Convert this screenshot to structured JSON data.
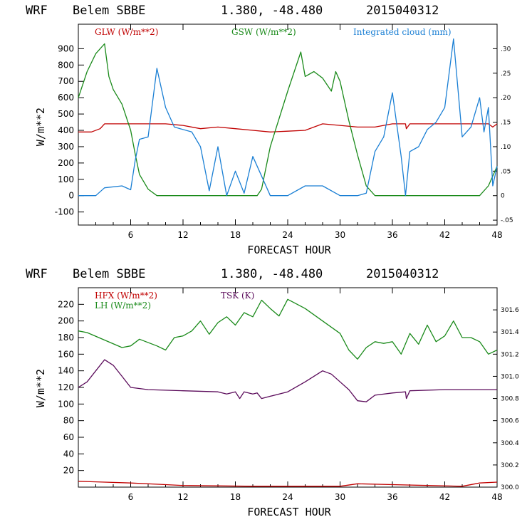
{
  "charts": [
    {
      "header": {
        "model": "WRF",
        "station": "Belem SBBE",
        "coords": "1.380, -48.480",
        "run": "2015040312"
      },
      "xlabel": "FORECAST HOUR",
      "ylabel": "W/m**2",
      "legend": [
        "GLW (W/m**2)",
        "GSW (W/m**2)",
        "Integrated cloud (mm)"
      ]
    },
    {
      "header": {
        "model": "WRF",
        "station": "Belem SBBE",
        "coords": "1.380, -48.480",
        "run": "2015040312"
      },
      "xlabel": "FORECAST HOUR",
      "ylabel": "W/m**2",
      "legend": [
        "HFX (W/m**2)",
        "LH (W/m**2)",
        "TSK (K)"
      ]
    }
  ],
  "chart_data": [
    {
      "type": "line",
      "title": "WRF Belem SBBE 1.380, -48.480 2015040312",
      "xlabel": "FORECAST HOUR",
      "ylabel": "W/m**2",
      "xlim": [
        0,
        48
      ],
      "ylim": [
        -180,
        1050
      ],
      "x_ticks": [
        "6",
        "12",
        "18",
        "24",
        "30",
        "36",
        "42",
        "48"
      ],
      "y_ticks": [
        "-100",
        "0",
        "100",
        "200",
        "300",
        "400",
        "500",
        "600",
        "700",
        "800",
        "900"
      ],
      "y2lim": [
        -0.06,
        0.35
      ],
      "y2_ticks": [
        "-.05",
        "0",
        ".05",
        ".10",
        ".15",
        ".20",
        ".25",
        ".30"
      ],
      "series": [
        {
          "name": "GLW (W/m**2)",
          "color": "#c00000",
          "axis": "left",
          "x": [
            0,
            1.5,
            2.5,
            3,
            10,
            12,
            14,
            16,
            18,
            20,
            22,
            24,
            26,
            28,
            30,
            32,
            34,
            36,
            37.5,
            37.6,
            38,
            40,
            42,
            44,
            46,
            47,
            47.5,
            48
          ],
          "values": [
            390,
            390,
            410,
            440,
            440,
            430,
            410,
            420,
            410,
            400,
            390,
            395,
            400,
            440,
            430,
            420,
            420,
            440,
            440,
            410,
            440,
            440,
            440,
            440,
            440,
            440,
            420,
            440
          ]
        },
        {
          "name": "GSW (W/m**2)",
          "color": "#1a8a1a",
          "axis": "left",
          "x": [
            0,
            1,
            2,
            2.5,
            3,
            3.5,
            4,
            5,
            6,
            6.5,
            7,
            8,
            9,
            12,
            18,
            20.5,
            21,
            22,
            24,
            25.5,
            26,
            27,
            28,
            29,
            29.5,
            30,
            31,
            32,
            33,
            34,
            36,
            42,
            46,
            47,
            48
          ],
          "values": [
            600,
            760,
            870,
            900,
            930,
            730,
            650,
            560,
            400,
            260,
            130,
            40,
            0,
            0,
            0,
            0,
            40,
            300,
            640,
            880,
            730,
            760,
            720,
            640,
            760,
            700,
            460,
            250,
            60,
            0,
            0,
            0,
            0,
            60,
            180
          ]
        },
        {
          "name": "Integrated cloud (mm)",
          "color": "#1a7fd4",
          "axis": "right",
          "x": [
            0,
            2,
            3,
            5,
            6,
            6.5,
            7,
            8,
            9,
            10,
            11,
            13,
            14,
            15,
            16,
            17,
            18,
            19,
            20,
            21,
            22,
            24,
            26,
            28,
            30,
            32,
            33,
            34,
            35,
            36,
            37,
            37.5,
            38,
            39,
            40,
            41,
            42,
            43,
            44,
            45,
            46,
            46.5,
            47,
            47.5,
            48
          ],
          "values": [
            0,
            0,
            0.016,
            0.02,
            0.012,
            0.07,
            0.115,
            0.12,
            0.26,
            0.18,
            0.14,
            0.13,
            0.1,
            0.01,
            0.1,
            0,
            0.05,
            0.005,
            0.08,
            0.04,
            0,
            0,
            0.02,
            0.02,
            0,
            0,
            0.005,
            0.09,
            0.12,
            0.21,
            0.08,
            0,
            0.09,
            0.1,
            0.135,
            0.15,
            0.18,
            0.32,
            0.12,
            0.14,
            0.2,
            0.13,
            0.18,
            0.02,
            0.06
          ]
        }
      ]
    },
    {
      "type": "line",
      "title": "WRF Belem SBBE 1.380, -48.480 2015040312",
      "xlabel": "FORECAST HOUR",
      "ylabel": "W/m**2",
      "xlim": [
        0,
        48
      ],
      "ylim": [
        0,
        240
      ],
      "x_ticks": [
        "6",
        "12",
        "18",
        "24",
        "30",
        "36",
        "42",
        "48"
      ],
      "y_ticks": [
        "20",
        "40",
        "60",
        "80",
        "100",
        "120",
        "140",
        "160",
        "180",
        "200",
        "220"
      ],
      "y2lim": [
        300.0,
        301.8
      ],
      "y2_ticks": [
        "300.0",
        "300.2",
        "300.4",
        "300.6",
        "300.8",
        "301.0",
        "301.2",
        "301.4",
        "301.6"
      ],
      "series": [
        {
          "name": "HFX (W/m**2)",
          "color": "#c00000",
          "axis": "left",
          "x": [
            0,
            3,
            6,
            10,
            12,
            20,
            30,
            32,
            36,
            40,
            44,
            46,
            48
          ],
          "values": [
            7,
            6,
            5,
            3,
            2,
            1,
            1,
            4,
            3,
            2,
            1,
            5,
            6
          ]
        },
        {
          "name": "LH (W/m**2)",
          "color": "#1a8a1a",
          "axis": "left",
          "x": [
            0,
            1,
            3,
            5,
            6,
            7,
            9,
            10,
            11,
            12,
            13,
            14,
            15,
            16,
            17,
            18,
            19,
            20,
            21,
            22,
            23,
            24,
            26,
            28,
            30,
            31,
            32,
            33,
            34,
            35,
            36,
            37,
            38,
            39,
            40,
            41,
            42,
            43,
            44,
            45,
            46,
            47,
            48
          ],
          "values": [
            188,
            186,
            177,
            168,
            170,
            178,
            170,
            165,
            180,
            182,
            188,
            200,
            184,
            198,
            205,
            195,
            210,
            205,
            225,
            215,
            206,
            226,
            215,
            200,
            185,
            165,
            154,
            168,
            175,
            173,
            175,
            160,
            185,
            172,
            195,
            175,
            182,
            200,
            180,
            180,
            175,
            160,
            165
          ]
        },
        {
          "name": "TSK (K)",
          "color": "#5a0a5a",
          "axis": "right",
          "x": [
            0,
            1,
            2,
            3,
            4,
            5,
            6,
            8,
            12,
            16,
            17,
            18,
            18.5,
            19,
            20,
            20.5,
            21,
            22,
            24,
            26,
            28,
            29,
            30,
            31,
            32,
            33,
            34,
            36,
            37.5,
            37.6,
            38,
            42,
            46,
            48
          ],
          "values": [
            300.9,
            300.95,
            301.05,
            301.15,
            301.1,
            301.0,
            300.9,
            300.88,
            300.87,
            300.86,
            300.84,
            300.86,
            300.8,
            300.86,
            300.84,
            300.85,
            300.8,
            300.82,
            300.86,
            300.95,
            301.05,
            301.02,
            300.95,
            300.88,
            300.78,
            300.77,
            300.83,
            300.85,
            300.86,
            300.8,
            300.87,
            300.88,
            300.88,
            300.88
          ]
        }
      ]
    }
  ]
}
